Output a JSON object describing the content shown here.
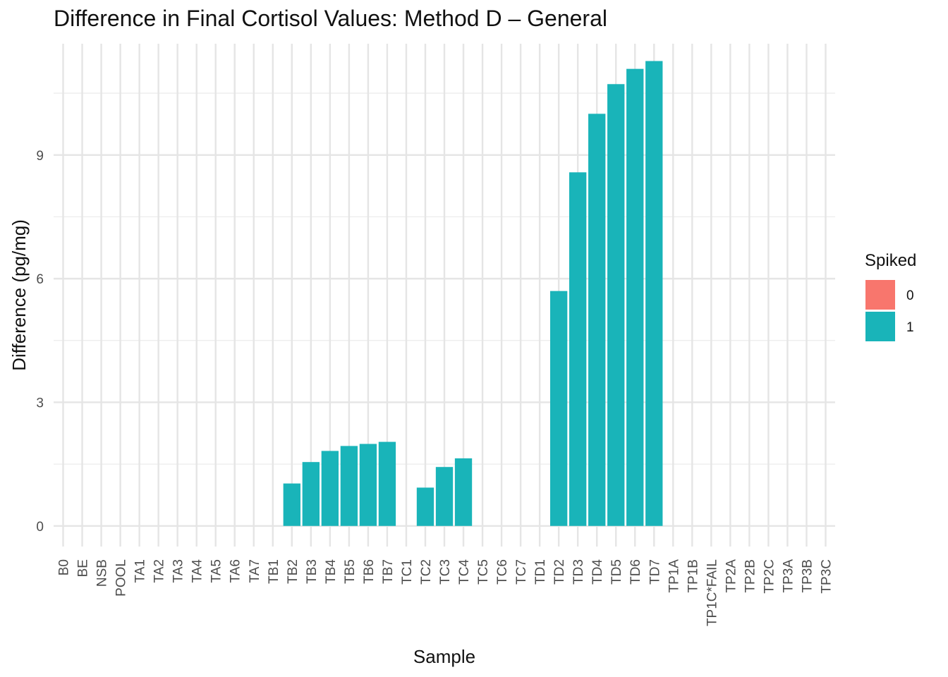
{
  "chart_data": {
    "type": "bar",
    "title": "Difference in Final Cortisol Values: Method D – General",
    "xlabel": "Sample",
    "ylabel": "Difference (pg/mg)",
    "ylim": [
      -0.5,
      11.7
    ],
    "yticks": [
      0,
      3,
      6,
      9
    ],
    "grid": true,
    "legend": {
      "title": "Spiked",
      "position": "right",
      "entries": [
        {
          "label": "0",
          "color": "#F8766D"
        },
        {
          "label": "1",
          "color": "#19B4B9"
        }
      ]
    },
    "categories": [
      "B0",
      "BE",
      "NSB",
      "POOL",
      "TA1",
      "TA2",
      "TA3",
      "TA4",
      "TA5",
      "TA6",
      "TA7",
      "TB1",
      "TB2",
      "TB3",
      "TB4",
      "TB5",
      "TB6",
      "TB7",
      "TC1",
      "TC2",
      "TC3",
      "TC4",
      "TC5",
      "TC6",
      "TC7",
      "TD1",
      "TD2",
      "TD3",
      "TD4",
      "TD5",
      "TD6",
      "TD7",
      "TP1A",
      "TP1B",
      "TP1C*FAIL",
      "TP2A",
      "TP2B",
      "TP2C",
      "TP3A",
      "TP3B",
      "TP3C"
    ],
    "values": [
      null,
      null,
      null,
      null,
      null,
      null,
      null,
      null,
      null,
      null,
      null,
      null,
      1.03,
      1.55,
      1.82,
      1.94,
      1.99,
      2.04,
      null,
      0.93,
      1.43,
      1.64,
      null,
      null,
      null,
      null,
      5.7,
      8.58,
      10.0,
      10.72,
      11.09,
      11.28,
      null,
      null,
      null,
      null,
      null,
      null,
      null,
      null,
      null
    ],
    "spiked": [
      "0",
      "0",
      "0",
      "0",
      "0",
      "0",
      "0",
      "0",
      "0",
      "0",
      "0",
      "0",
      "1",
      "1",
      "1",
      "1",
      "1",
      "1",
      "1",
      "1",
      "1",
      "1",
      "1",
      "1",
      "1",
      "1",
      "1",
      "1",
      "1",
      "1",
      "1",
      "1",
      "0",
      "0",
      "0",
      "0",
      "0",
      "0",
      "0",
      "0",
      "0"
    ]
  }
}
